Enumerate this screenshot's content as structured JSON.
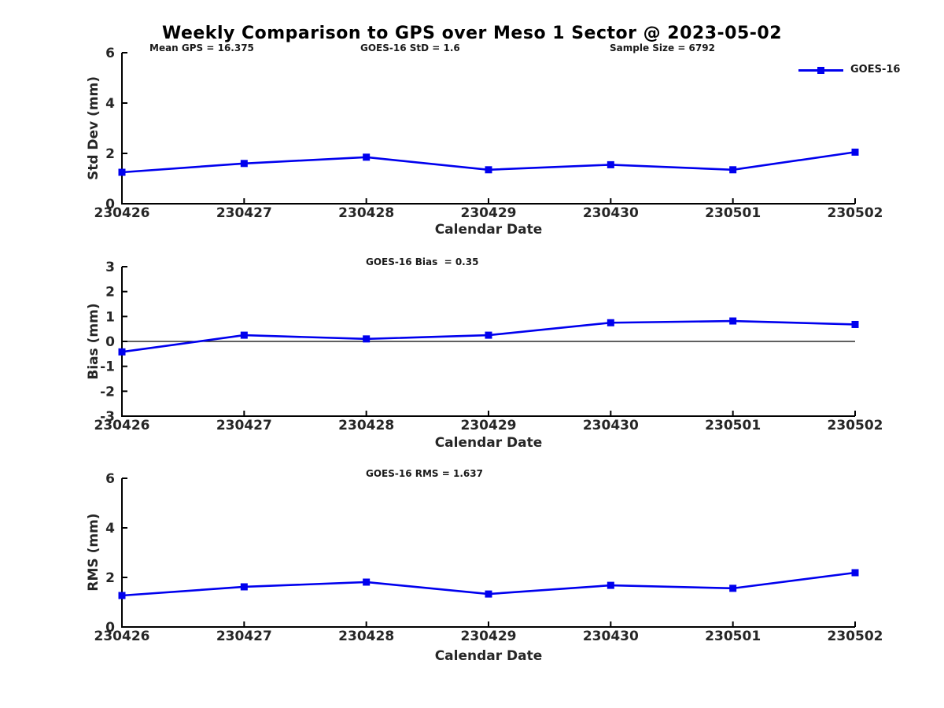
{
  "title": "Weekly Comparison to GPS over Meso 1 Sector @ 2023-05-02",
  "colors": {
    "line": "#0000ee",
    "axis": "#000000",
    "tick_text": "#262626"
  },
  "legend": {
    "label": "GOES-16",
    "position": "top-right"
  },
  "chart_data": [
    {
      "type": "line",
      "series": "GOES-16",
      "categories": [
        "230426",
        "230427",
        "230428",
        "230429",
        "230430",
        "230501",
        "230502"
      ],
      "values": [
        1.25,
        1.6,
        1.85,
        1.35,
        1.55,
        1.35,
        2.05
      ],
      "xlabel": "Calendar Date",
      "ylabel": "Std Dev (mm)",
      "ylim": [
        0,
        6
      ],
      "yticks": [
        0,
        2,
        4,
        6
      ],
      "zero_line": false,
      "grid": false,
      "marker": "square",
      "annotations": [
        {
          "text": "Mean GPS = 16.375"
        },
        {
          "text": "GOES-16 StD = 1.6"
        },
        {
          "text": "Sample Size = 6792"
        }
      ]
    },
    {
      "type": "line",
      "series": "GOES-16",
      "categories": [
        "230426",
        "230427",
        "230428",
        "230429",
        "230430",
        "230501",
        "230502"
      ],
      "values": [
        -0.42,
        0.25,
        0.1,
        0.25,
        0.75,
        0.82,
        0.68
      ],
      "xlabel": "Calendar Date",
      "ylabel": "Bias (mm)",
      "ylim": [
        -3,
        3
      ],
      "yticks": [
        3,
        2,
        1,
        0,
        -1,
        -2,
        -3
      ],
      "zero_line": true,
      "grid": false,
      "marker": "square",
      "annotations": [
        {
          "text": "GOES-16 Bias  = 0.35"
        }
      ]
    },
    {
      "type": "line",
      "series": "GOES-16",
      "categories": [
        "230426",
        "230427",
        "230428",
        "230429",
        "230430",
        "230501",
        "230502"
      ],
      "values": [
        1.27,
        1.62,
        1.81,
        1.33,
        1.68,
        1.56,
        2.19
      ],
      "xlabel": "Calendar Date",
      "ylabel": "RMS (mm)",
      "ylim": [
        0,
        6
      ],
      "yticks": [
        0,
        2,
        4,
        6
      ],
      "zero_line": false,
      "grid": false,
      "marker": "square",
      "annotations": [
        {
          "text": "GOES-16 RMS = 1.637"
        }
      ]
    }
  ]
}
